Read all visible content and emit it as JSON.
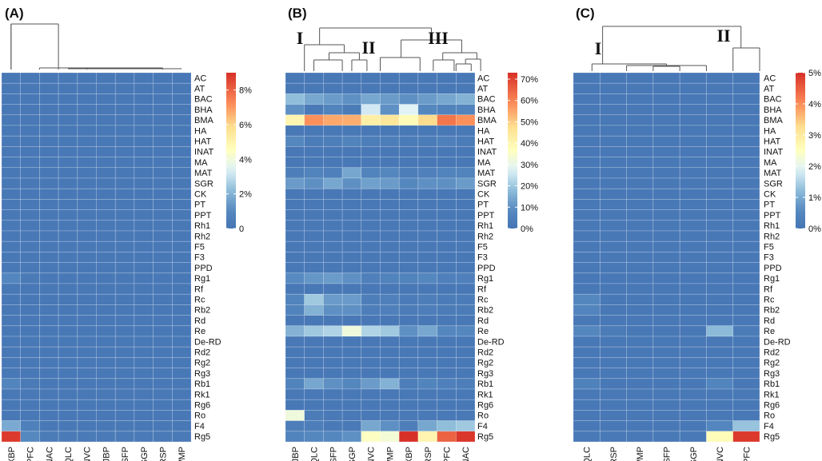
{
  "figure": {
    "rows": [
      "AC",
      "AT",
      "BAC",
      "BHA",
      "BMA",
      "HA",
      "HAT",
      "INAT",
      "MA",
      "MAT",
      "SGR",
      "CK",
      "PT",
      "PPT",
      "Rh1",
      "Rh2",
      "F5",
      "F3",
      "PPD",
      "Rg1",
      "Rf",
      "Rc",
      "Rb2",
      "Rd",
      "Re",
      "De-RD",
      "Rd2",
      "Rg2",
      "Rg3",
      "Rb1",
      "Rk1",
      "Rg6",
      "Ro",
      "F4",
      "Rg5"
    ]
  },
  "chart_data": [
    {
      "type": "heatmap",
      "panel_label": "(A)",
      "columns": [
        "XBP",
        "PFC",
        "NAC",
        "QLC",
        "NVC",
        "JBP",
        "SFP",
        "SGP",
        "RSP",
        "WMP"
      ],
      "value_unit": "",
      "vmin": 0,
      "vmax": 9,
      "legend_ticks": [
        {
          "v": 0,
          "label": "0"
        },
        {
          "v": 2,
          "label": "2%"
        },
        {
          "v": 4,
          "label": "4%"
        },
        {
          "v": 6,
          "label": "6%"
        },
        {
          "v": 8,
          "label": "8%"
        }
      ],
      "overrides": [
        {
          "row": "Rg5",
          "values": [
            8.8,
            1.0,
            0.4,
            0.3,
            0.3,
            0.3,
            0.3,
            0.3,
            0.3,
            0.3
          ]
        },
        {
          "row": "F4",
          "values": [
            1.8,
            0.6,
            0.2,
            0.2,
            0.2,
            0.2,
            0.2,
            0.2,
            0.2,
            0.2
          ]
        },
        {
          "row": "Rg1",
          "values": [
            0.9,
            0.3,
            0.2,
            0.2,
            0.2,
            0.2,
            0.2,
            0.2,
            0.2,
            0.2
          ]
        },
        {
          "row": "Rb1",
          "values": [
            0.8,
            0.3,
            0.2,
            0.2,
            0.2,
            0.2,
            0.2,
            0.2,
            0.2,
            0.2
          ]
        }
      ],
      "dendrogram_labels": []
    },
    {
      "type": "heatmap",
      "panel_label": "(B)",
      "columns": [
        "JBP",
        "QLC",
        "SFP",
        "SGP",
        "NVC",
        "WMP",
        "XBP",
        "RSP",
        "PFC",
        "NAC"
      ],
      "value_unit": "%",
      "vmin": 0,
      "vmax": 73,
      "legend_ticks": [
        {
          "v": 0,
          "label": "0%"
        },
        {
          "v": 10,
          "label": "10%"
        },
        {
          "v": 20,
          "label": "20%"
        },
        {
          "v": 30,
          "label": "30%"
        },
        {
          "v": 40,
          "label": "40%"
        },
        {
          "v": 50,
          "label": "50%"
        },
        {
          "v": 60,
          "label": "60%"
        },
        {
          "v": 70,
          "label": "70%"
        }
      ],
      "overrides": [
        {
          "row": "BAC",
          "values": [
            18,
            14,
            12,
            10,
            14,
            12,
            10,
            12,
            14,
            16
          ]
        },
        {
          "row": "BHA",
          "values": [
            10,
            2,
            6,
            3,
            26,
            10,
            28,
            8,
            6,
            6
          ]
        },
        {
          "row": "BMA",
          "values": [
            40,
            58,
            55,
            54,
            42,
            45,
            38,
            48,
            62,
            58
          ]
        },
        {
          "row": "HAT",
          "values": [
            8,
            3,
            4,
            6,
            4,
            4,
            3,
            3,
            5,
            3
          ]
        },
        {
          "row": "MAT",
          "values": [
            4,
            6,
            5,
            14,
            6,
            8,
            4,
            5,
            6,
            6
          ]
        },
        {
          "row": "SGR",
          "values": [
            12,
            10,
            14,
            10,
            13,
            12,
            8,
            10,
            10,
            12
          ]
        },
        {
          "row": "Rg1",
          "values": [
            9,
            11,
            12,
            10,
            5,
            6,
            6,
            8,
            5,
            5
          ]
        },
        {
          "row": "Rc",
          "values": [
            6,
            20,
            12,
            12,
            4,
            5,
            3,
            4,
            3,
            3
          ]
        },
        {
          "row": "Rb2",
          "values": [
            6,
            16,
            10,
            10,
            4,
            5,
            3,
            4,
            3,
            3
          ]
        },
        {
          "row": "Re",
          "values": [
            16,
            20,
            22,
            32,
            22,
            20,
            10,
            14,
            8,
            8
          ]
        },
        {
          "row": "Rb1",
          "values": [
            6,
            14,
            10,
            8,
            12,
            16,
            4,
            6,
            5,
            4
          ]
        },
        {
          "row": "Ro",
          "values": [
            32,
            3,
            2,
            2,
            2,
            2,
            2,
            2,
            2,
            2
          ]
        },
        {
          "row": "F4",
          "values": [
            4,
            4,
            2,
            2,
            14,
            10,
            4,
            14,
            18,
            20
          ]
        },
        {
          "row": "Rg5",
          "values": [
            6,
            8,
            8,
            10,
            36,
            33,
            73,
            40,
            65,
            72
          ]
        }
      ],
      "dendrogram_labels": [
        "I",
        "II",
        "III"
      ]
    },
    {
      "type": "heatmap",
      "panel_label": "(C)",
      "columns": [
        "QLC",
        "RSP",
        "WMP",
        "SFP",
        "SGP",
        "NVC",
        "PFC"
      ],
      "value_unit": "%",
      "vmin": 0,
      "vmax": 5,
      "legend_ticks": [
        {
          "v": 0,
          "label": "0%"
        },
        {
          "v": 1,
          "label": "1%"
        },
        {
          "v": 2,
          "label": "2%"
        },
        {
          "v": 3,
          "label": "3%"
        },
        {
          "v": 4,
          "label": "4%"
        },
        {
          "v": 5,
          "label": "5%"
        }
      ],
      "overrides": [
        {
          "row": "Rc",
          "values": [
            0.55,
            0.1,
            0.1,
            0.1,
            0.1,
            0.1,
            0.1
          ]
        },
        {
          "row": "Rb2",
          "values": [
            0.45,
            0.1,
            0.1,
            0.1,
            0.1,
            0.1,
            0.1
          ]
        },
        {
          "row": "Re",
          "values": [
            0.55,
            0.2,
            0.1,
            0.1,
            0.1,
            1.2,
            0.2
          ]
        },
        {
          "row": "Rb1",
          "values": [
            0.35,
            0.1,
            0.1,
            0.1,
            0.1,
            0.45,
            0.1
          ]
        },
        {
          "row": "F4",
          "values": [
            0.1,
            0.1,
            0.1,
            0.1,
            0.1,
            0.5,
            1.3
          ]
        },
        {
          "row": "Rg5",
          "values": [
            0.15,
            0.15,
            0.15,
            0.15,
            0.15,
            2.6,
            4.9
          ]
        }
      ],
      "dendrogram_labels": [
        "I",
        "II"
      ]
    }
  ]
}
